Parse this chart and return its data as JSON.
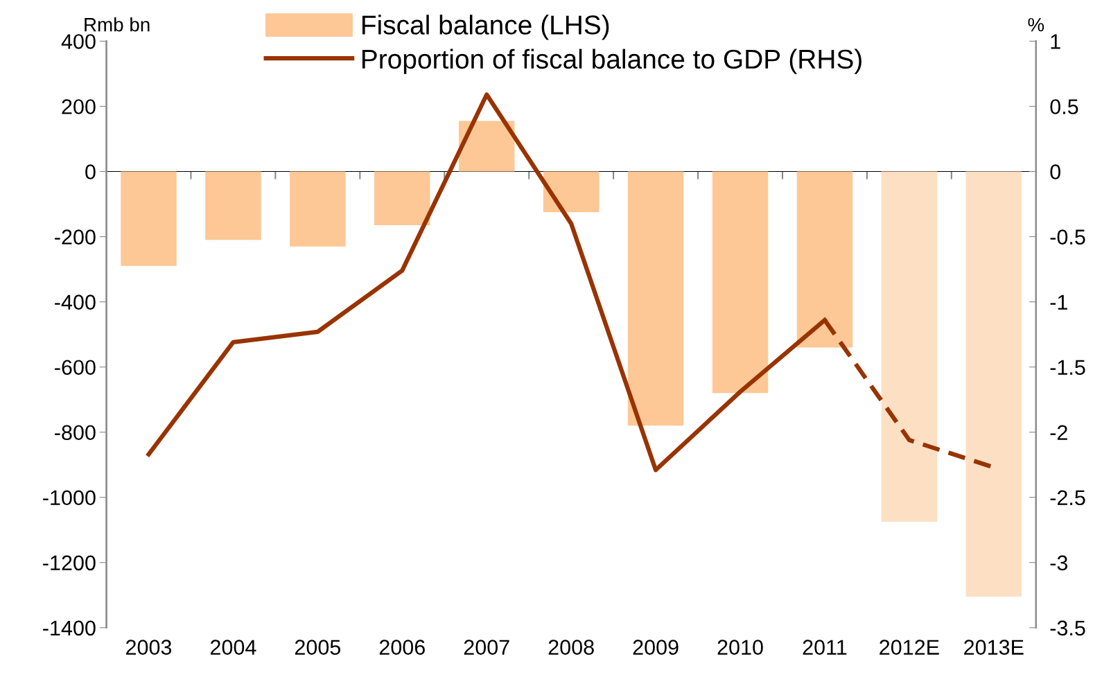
{
  "chart_data": {
    "type": "bar",
    "categories": [
      "2003",
      "2004",
      "2005",
      "2006",
      "2007",
      "2008",
      "2009",
      "2010",
      "2011",
      "2012E",
      "2013E"
    ],
    "ylabel": "Rmb bn",
    "y2label": "%",
    "ylim": [
      -1400,
      400
    ],
    "yticks": [
      -1400,
      -1200,
      -1000,
      -800,
      -600,
      -400,
      -200,
      0,
      200,
      400
    ],
    "y2lim": [
      -3.5,
      1
    ],
    "y2ticks": [
      -3.5,
      -3,
      -2.5,
      -2,
      -1.5,
      -1,
      -0.5,
      0,
      0.5,
      1
    ],
    "legend": "top",
    "series": [
      {
        "name": "Fiscal balance (LHS)",
        "color": "#fdc896",
        "colors": [
          "#fdc896",
          "#fdc896",
          "#fdc896",
          "#fdc896",
          "#fdc896",
          "#fdc896",
          "#fdc896",
          "#fdc896",
          "#fdc896",
          "#fde0c4",
          "#fde0c4"
        ],
        "values": [
          -290,
          -210,
          -230,
          -165,
          155,
          -125,
          -780,
          -680,
          -540,
          -1075,
          -1305
        ]
      },
      {
        "name": "Proportion of fiscal balance to GDP (RHS)",
        "type": "line",
        "axis": "y2",
        "color": "#993300",
        "line_style": "solid",
        "values": [
          -2.17,
          -1.31,
          -1.23,
          -0.76,
          0.59,
          -0.4,
          -2.29,
          -1.69,
          -1.14,
          null,
          null
        ]
      },
      {
        "type": "line",
        "axis": "y2",
        "color": "#993300",
        "line_style": "dashed",
        "values": [
          null,
          null,
          null,
          null,
          null,
          null,
          null,
          null,
          -1.14,
          -2.06,
          -2.27
        ]
      }
    ]
  }
}
